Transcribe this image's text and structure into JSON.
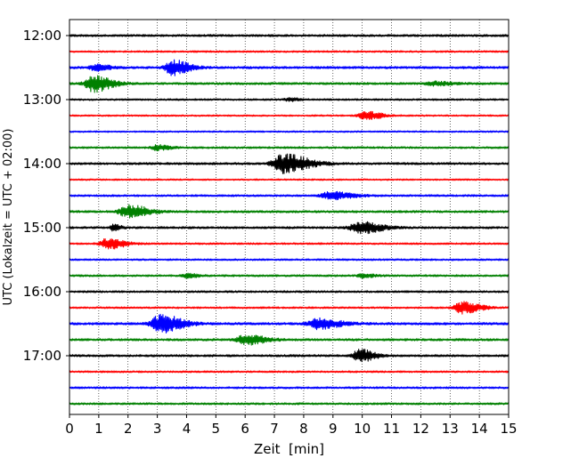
{
  "chart_data": {
    "type": "line",
    "title": "",
    "xlabel": "Zeit  [min]",
    "ylabel": "UTC (Lokalzeit = UTC + 02:00)",
    "xlim": [
      0,
      15
    ],
    "x_ticks": [
      0,
      1,
      2,
      3,
      4,
      5,
      6,
      7,
      8,
      9,
      10,
      11,
      12,
      13,
      14,
      15
    ],
    "y_ticks": [
      "12:00",
      "13:00",
      "14:00",
      "15:00",
      "16:00",
      "17:00"
    ],
    "grid": "vertical dotted",
    "colors": [
      "#000000",
      "#ff0000",
      "#0000ff",
      "#008000"
    ],
    "series": [
      {
        "start": "12:00",
        "noise": 0.55,
        "events": []
      },
      {
        "start": "12:15",
        "noise": 0.45,
        "events": []
      },
      {
        "start": "12:30",
        "noise": 0.6,
        "events": [
          {
            "t": 0.9,
            "amp": 2.2,
            "w": 0.4
          },
          {
            "t": 3.5,
            "amp": 6.0,
            "w": 0.45
          }
        ]
      },
      {
        "start": "12:45",
        "noise": 0.55,
        "events": [
          {
            "t": 0.8,
            "amp": 6.5,
            "w": 0.5
          },
          {
            "t": 12.4,
            "amp": 1.4,
            "w": 0.5
          }
        ]
      },
      {
        "start": "13:00",
        "noise": 0.45,
        "events": [
          {
            "t": 7.5,
            "amp": 1.2,
            "w": 0.3
          }
        ]
      },
      {
        "start": "13:15",
        "noise": 0.4,
        "events": [
          {
            "t": 10.1,
            "amp": 3.2,
            "w": 0.45
          }
        ]
      },
      {
        "start": "13:30",
        "noise": 0.4,
        "events": []
      },
      {
        "start": "13:45",
        "noise": 0.5,
        "events": [
          {
            "t": 3.0,
            "amp": 2.0,
            "w": 0.35
          }
        ]
      },
      {
        "start": "14:00",
        "noise": 0.55,
        "events": [
          {
            "t": 7.3,
            "amp": 7.5,
            "w": 0.7
          }
        ]
      },
      {
        "start": "14:15",
        "noise": 0.4,
        "events": []
      },
      {
        "start": "14:30",
        "noise": 0.5,
        "events": [
          {
            "t": 8.9,
            "amp": 2.8,
            "w": 0.6
          }
        ]
      },
      {
        "start": "14:45",
        "noise": 0.55,
        "events": [
          {
            "t": 2.0,
            "amp": 5.0,
            "w": 0.55
          }
        ]
      },
      {
        "start": "15:00",
        "noise": 0.55,
        "events": [
          {
            "t": 1.5,
            "amp": 2.5,
            "w": 0.2
          },
          {
            "t": 9.9,
            "amp": 4.5,
            "w": 0.6
          }
        ]
      },
      {
        "start": "15:15",
        "noise": 0.45,
        "events": [
          {
            "t": 1.3,
            "amp": 4.5,
            "w": 0.45
          }
        ]
      },
      {
        "start": "15:30",
        "noise": 0.45,
        "events": []
      },
      {
        "start": "15:45",
        "noise": 0.5,
        "events": [
          {
            "t": 4.0,
            "amp": 1.5,
            "w": 0.3
          },
          {
            "t": 10.0,
            "amp": 1.5,
            "w": 0.3
          }
        ]
      },
      {
        "start": "16:00",
        "noise": 0.5,
        "events": []
      },
      {
        "start": "16:15",
        "noise": 0.45,
        "events": [
          {
            "t": 13.4,
            "amp": 4.5,
            "w": 0.5
          }
        ]
      },
      {
        "start": "16:30",
        "noise": 0.6,
        "events": [
          {
            "t": 3.1,
            "amp": 7.0,
            "w": 0.6
          },
          {
            "t": 8.5,
            "amp": 4.0,
            "w": 0.6
          }
        ]
      },
      {
        "start": "16:45",
        "noise": 0.55,
        "events": [
          {
            "t": 6.0,
            "amp": 3.8,
            "w": 0.55
          }
        ]
      },
      {
        "start": "17:00",
        "noise": 0.55,
        "events": [
          {
            "t": 9.9,
            "amp": 5.0,
            "w": 0.4
          }
        ]
      },
      {
        "start": "17:15",
        "noise": 0.45,
        "events": []
      },
      {
        "start": "17:30",
        "noise": 0.5,
        "events": []
      },
      {
        "start": "17:45",
        "noise": 0.5,
        "events": []
      }
    ]
  }
}
